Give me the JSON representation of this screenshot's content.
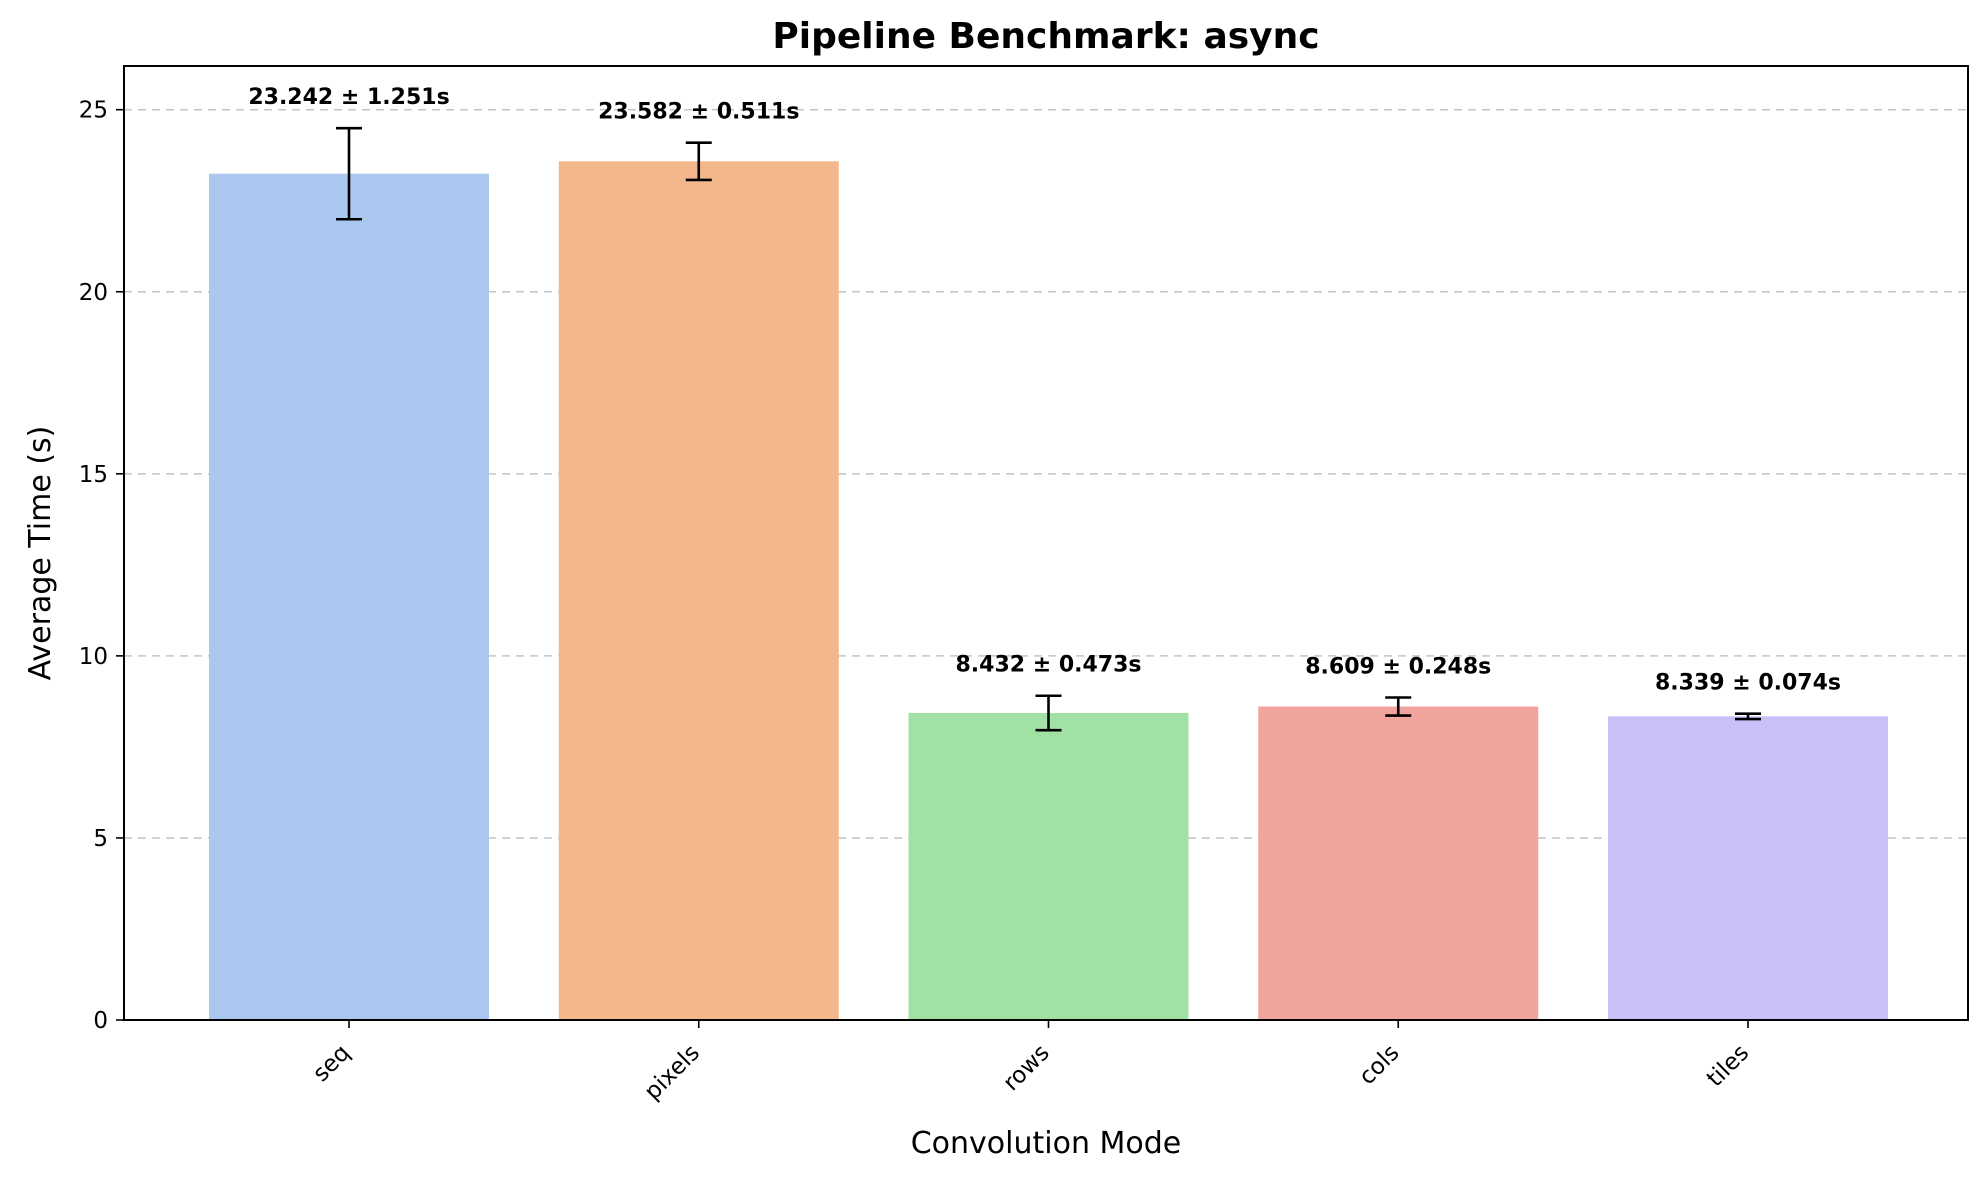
{
  "chart_data": {
    "type": "bar",
    "title": "Pipeline Benchmark: async",
    "xlabel": "Convolution Mode",
    "ylabel": "Average Time (s)",
    "categories": [
      "seq",
      "pixels",
      "rows",
      "cols",
      "tiles"
    ],
    "values": [
      23.242,
      23.582,
      8.432,
      8.609,
      8.339
    ],
    "errors": [
      1.251,
      0.511,
      0.473,
      0.248,
      0.074
    ],
    "data_labels": [
      "23.242 ± 1.251s",
      "23.582 ± 0.511s",
      "8.432 ± 0.473s",
      "8.609 ± 0.248s",
      "8.339 ± 0.074s"
    ],
    "colors": [
      "#a9c7ef",
      "#f3b78b",
      "#a1e2a4",
      "#f1a39e",
      "#cbbff8"
    ],
    "ylim": [
      0,
      26.2
    ],
    "yticks": [
      0,
      5,
      10,
      15,
      20,
      25
    ],
    "grid": "horizontal dashed",
    "legend": "none"
  }
}
